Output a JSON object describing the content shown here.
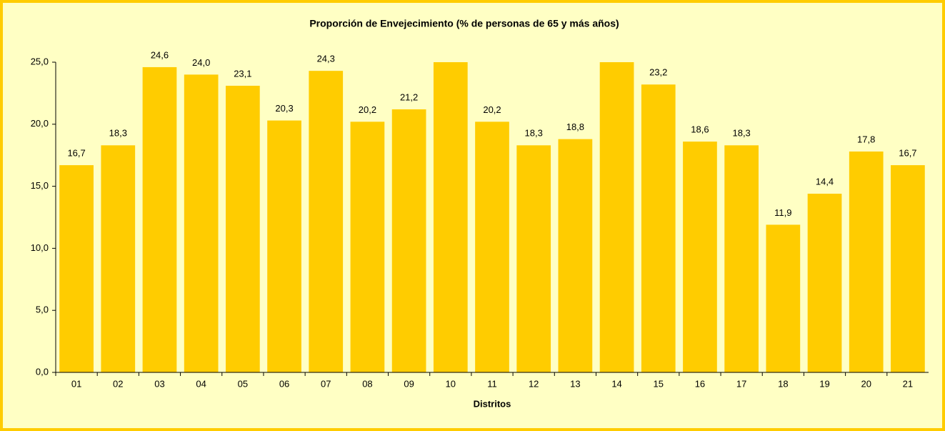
{
  "chart_data": {
    "type": "bar",
    "title": "Proporción de Envejecimiento (% de personas de 65 y más años)",
    "x_label": "Distritos",
    "categories": [
      "01",
      "02",
      "03",
      "04",
      "05",
      "06",
      "07",
      "08",
      "09",
      "10",
      "11",
      "12",
      "13",
      "14",
      "15",
      "16",
      "17",
      "18",
      "19",
      "20",
      "21"
    ],
    "values": [
      16.7,
      18.3,
      24.6,
      24.0,
      23.1,
      20.3,
      24.3,
      20.2,
      21.2,
      26.0,
      20.2,
      18.3,
      18.8,
      26.0,
      23.2,
      18.6,
      18.3,
      11.9,
      14.4,
      17.8,
      16.7
    ],
    "value_labels": [
      "16,7",
      "18,3",
      "24,6",
      "24,0",
      "23,1",
      "20,3",
      "24,3",
      "20,2",
      "21,2",
      null,
      "20,2",
      "18,3",
      "18,8",
      null,
      "23,2",
      "18,6",
      "18,3",
      "11,9",
      "14,4",
      "17,8",
      "16,7"
    ],
    "color": "#ffcc00",
    "ylim": [
      0,
      25
    ],
    "yticks": [
      {
        "value": 0,
        "label": "0,0"
      },
      {
        "value": 5,
        "label": "5,0"
      },
      {
        "value": 10,
        "label": "10,0"
      },
      {
        "value": 15,
        "label": "15,0"
      },
      {
        "value": 20,
        "label": "20,0"
      },
      {
        "value": 25,
        "label": "25,0"
      }
    ],
    "grid": false
  }
}
